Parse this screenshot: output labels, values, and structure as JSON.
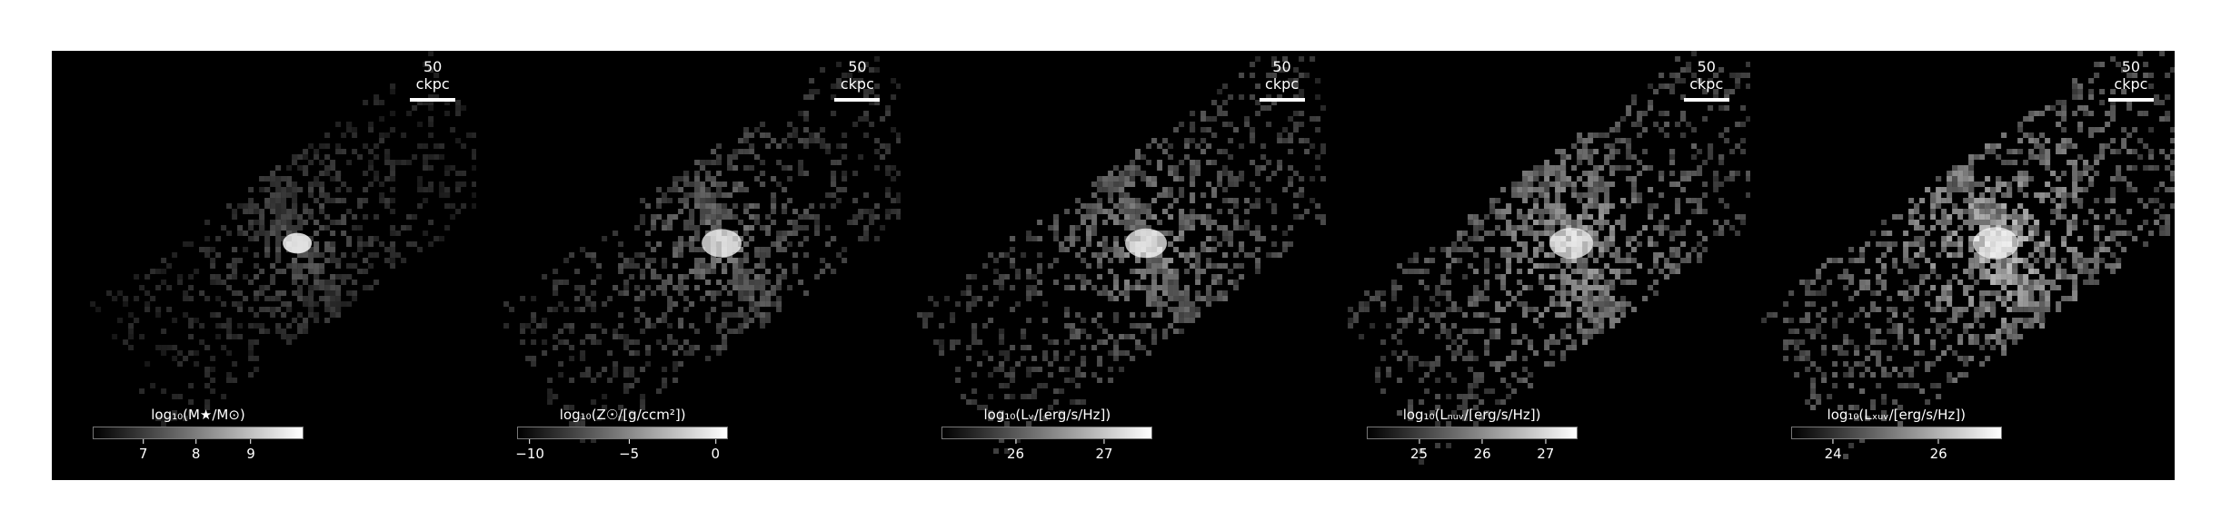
{
  "scale_bar_label": "50 ckpc",
  "panels": [
    {
      "id": "mstar",
      "colorbar_label": "log₁₀(M★/M⊙)",
      "ticks": [
        "7",
        "8",
        "9"
      ],
      "tick_pos": [
        0.24,
        0.49,
        0.75
      ],
      "brightness": 0.45,
      "concentration": 0.9
    },
    {
      "id": "zsolar",
      "colorbar_label": "log₁₀(Z☉/[g/ccm²])",
      "ticks": [
        "−10",
        "−5",
        "0"
      ],
      "tick_pos": [
        0.06,
        0.53,
        0.94
      ],
      "brightness": 0.55,
      "concentration": 0.6
    },
    {
      "id": "lv",
      "colorbar_label": "log₁₀(Lᵥ/[erg/s/Hz])",
      "ticks": [
        "26",
        "27"
      ],
      "tick_pos": [
        0.35,
        0.77
      ],
      "brightness": 0.65,
      "concentration": 0.55
    },
    {
      "id": "lnuv",
      "colorbar_label": "log₁₀(Lₙᵤᵥ/[erg/s/Hz])",
      "ticks": [
        "25",
        "26",
        "27"
      ],
      "tick_pos": [
        0.25,
        0.55,
        0.85
      ],
      "brightness": 0.75,
      "concentration": 0.5
    },
    {
      "id": "lfuv",
      "colorbar_label": "log₁₀(Lₓᵤᵥ/[erg/s/Hz])",
      "ticks": [
        "24",
        "26"
      ],
      "tick_pos": [
        0.2,
        0.7
      ],
      "brightness": 0.85,
      "concentration": 0.45
    }
  ]
}
